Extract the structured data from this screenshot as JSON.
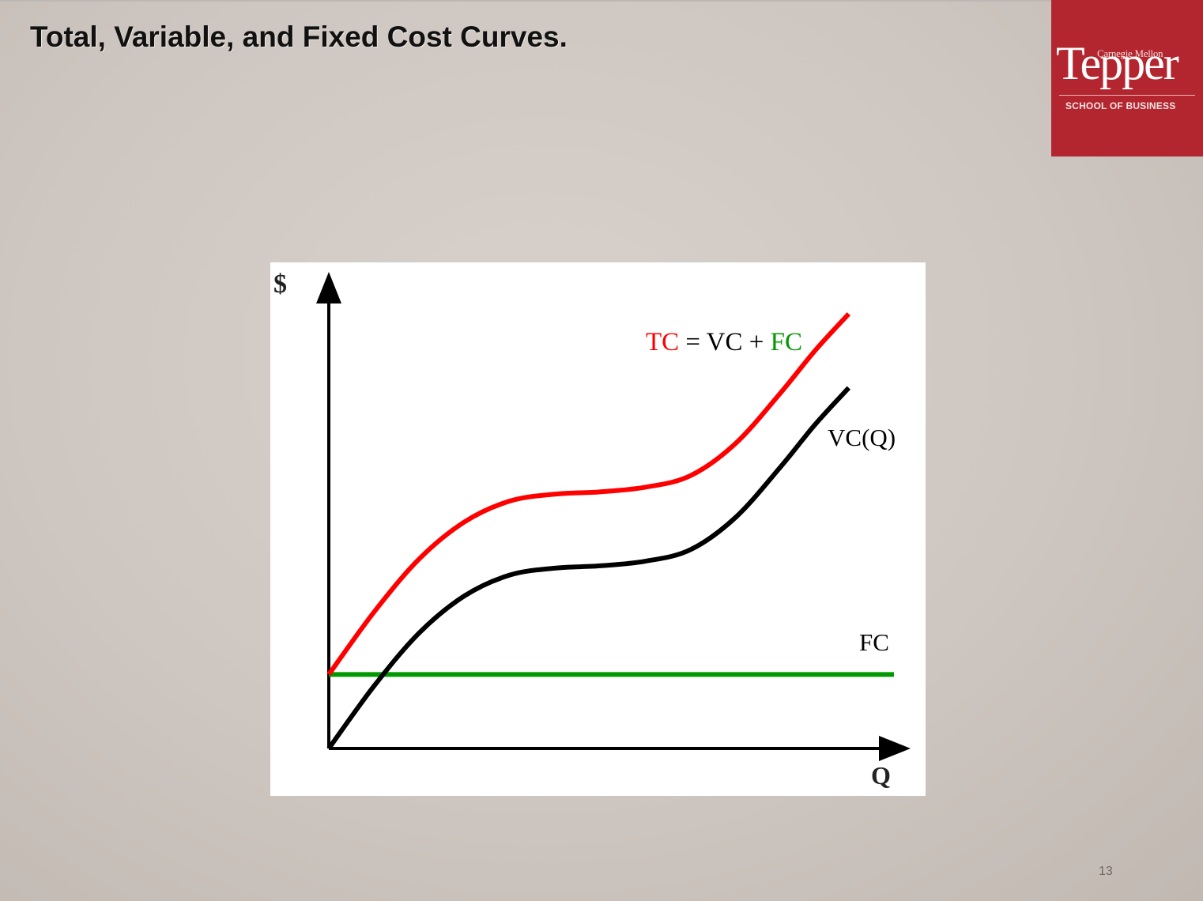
{
  "slide": {
    "title": "Total, Variable, and Fixed Cost Curves.",
    "page_number": "13"
  },
  "logo": {
    "top_line": "Carnegie Mellon",
    "main": "Tepper",
    "bottom_line": "SCHOOL OF BUSINESS",
    "color": "#b3262f"
  },
  "chart_data": {
    "type": "line",
    "ylabel": "$",
    "xlabel": "Q",
    "title_parts": [
      {
        "text": "TC",
        "color": "#ff0000"
      },
      {
        "text": " = VC + ",
        "color": "#000000"
      },
      {
        "text": "FC",
        "color": "#009900"
      }
    ],
    "xlim": [
      0,
      10
    ],
    "ylim": [
      0,
      10
    ],
    "grid": false,
    "series": [
      {
        "name": "TC",
        "color": "#ff0000",
        "x": [
          0,
          0.8,
          1.6,
          2.4,
          3.2,
          4.0,
          4.8,
          5.6,
          6.4,
          7.2,
          8.0,
          8.6,
          9.2
        ],
        "y": [
          1.6,
          2.95,
          4.1,
          4.9,
          5.35,
          5.5,
          5.55,
          5.65,
          5.9,
          6.6,
          7.7,
          8.6,
          9.4
        ]
      },
      {
        "name": "VC(Q)",
        "color": "#000000",
        "x": [
          0,
          0.8,
          1.6,
          2.4,
          3.2,
          4.0,
          4.8,
          5.6,
          6.4,
          7.2,
          8.0,
          8.6,
          9.2
        ],
        "y": [
          0,
          1.35,
          2.5,
          3.3,
          3.75,
          3.9,
          3.95,
          4.05,
          4.3,
          5.0,
          6.1,
          7.0,
          7.8
        ]
      },
      {
        "name": "FC",
        "color": "#009900",
        "x": [
          0,
          10
        ],
        "y": [
          1.6,
          1.6
        ]
      }
    ]
  }
}
